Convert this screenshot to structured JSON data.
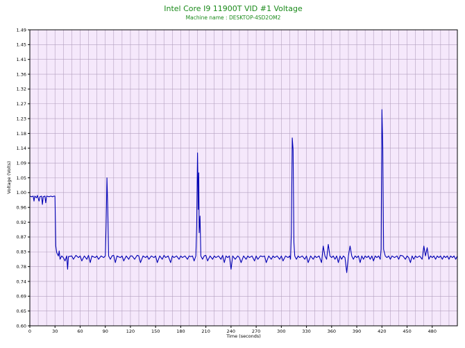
{
  "colors": {
    "plot_background": "#f5e8fb",
    "grid": "#b3a0bf",
    "series_line": "#0000b4",
    "title": "#1a8a1a",
    "axis": "#000000"
  },
  "chart_data": {
    "type": "line",
    "title": "Intel Core I9 11900T VID #1 Voltage",
    "subtitle": "Machine name : DESKTOP-4SD2OM2",
    "xlabel": "Time (seconds)",
    "ylabel": "Voltage (Volts)",
    "xlim": [
      0,
      510
    ],
    "ylim": [
      0.6,
      1.49
    ],
    "grid": true,
    "x_ticks": [
      "0",
      "30",
      "60",
      "90",
      "120",
      "150",
      "180",
      "210",
      "240",
      "270",
      "300",
      "330",
      "360",
      "390",
      "420",
      "450",
      "480"
    ],
    "x_tick_values": [
      0,
      30,
      60,
      90,
      120,
      150,
      180,
      210,
      240,
      270,
      300,
      330,
      360,
      390,
      420,
      450,
      480
    ],
    "x_minor_step": 10,
    "y_ticks": [
      "0.60",
      "0.65",
      "0.69",
      "0.74",
      "0.78",
      "0.83",
      "0.87",
      "0.92",
      "0.96",
      "1.00",
      "1.05",
      "1.09",
      "1.14",
      "1.18",
      "1.23",
      "1.27",
      "1.32",
      "1.36",
      "1.41",
      "1.45",
      "1.49"
    ],
    "series": [
      {
        "values": [
          [
            0,
            0.99
          ],
          [
            2,
            0.988
          ],
          [
            4,
            0.99
          ],
          [
            5,
            0.975
          ],
          [
            6,
            0.99
          ],
          [
            8,
            0.985
          ],
          [
            9,
            0.992
          ],
          [
            11,
            0.975
          ],
          [
            12,
            0.988
          ],
          [
            14,
            0.99
          ],
          [
            15,
            0.965
          ],
          [
            16,
            0.988
          ],
          [
            18,
            0.99
          ],
          [
            19,
            0.97
          ],
          [
            20,
            0.99
          ],
          [
            23,
            0.988
          ],
          [
            25,
            0.99
          ],
          [
            27,
            0.988
          ],
          [
            29,
            0.99
          ],
          [
            30,
            0.99
          ],
          [
            31,
            0.84
          ],
          [
            32,
            0.82
          ],
          [
            34,
            0.81
          ],
          [
            35,
            0.825
          ],
          [
            36,
            0.8
          ],
          [
            38,
            0.81
          ],
          [
            40,
            0.805
          ],
          [
            42,
            0.795
          ],
          [
            44,
            0.81
          ],
          [
            45,
            0.77
          ],
          [
            46,
            0.808
          ],
          [
            50,
            0.81
          ],
          [
            52,
            0.8
          ],
          [
            55,
            0.812
          ],
          [
            58,
            0.805
          ],
          [
            60,
            0.81
          ],
          [
            62,
            0.795
          ],
          [
            65,
            0.81
          ],
          [
            68,
            0.8
          ],
          [
            70,
            0.812
          ],
          [
            72,
            0.79
          ],
          [
            74,
            0.81
          ],
          [
            78,
            0.805
          ],
          [
            80,
            0.81
          ],
          [
            82,
            0.8
          ],
          [
            85,
            0.81
          ],
          [
            88,
            0.805
          ],
          [
            90,
            0.81
          ],
          [
            91,
            0.9
          ],
          [
            92,
            1.045
          ],
          [
            93,
            0.95
          ],
          [
            94,
            0.81
          ],
          [
            96,
            0.8
          ],
          [
            98,
            0.81
          ],
          [
            100,
            0.812
          ],
          [
            102,
            0.79
          ],
          [
            104,
            0.81
          ],
          [
            108,
            0.805
          ],
          [
            110,
            0.81
          ],
          [
            112,
            0.795
          ],
          [
            115,
            0.81
          ],
          [
            118,
            0.8
          ],
          [
            120,
            0.81
          ],
          [
            122,
            0.81
          ],
          [
            125,
            0.8
          ],
          [
            128,
            0.812
          ],
          [
            130,
            0.81
          ],
          [
            132,
            0.79
          ],
          [
            135,
            0.81
          ],
          [
            138,
            0.805
          ],
          [
            140,
            0.81
          ],
          [
            142,
            0.8
          ],
          [
            145,
            0.81
          ],
          [
            148,
            0.805
          ],
          [
            150,
            0.81
          ],
          [
            152,
            0.79
          ],
          [
            155,
            0.81
          ],
          [
            158,
            0.8
          ],
          [
            160,
            0.812
          ],
          [
            162,
            0.805
          ],
          [
            165,
            0.81
          ],
          [
            168,
            0.79
          ],
          [
            170,
            0.81
          ],
          [
            172,
            0.805
          ],
          [
            175,
            0.81
          ],
          [
            178,
            0.8
          ],
          [
            180,
            0.81
          ],
          [
            182,
            0.805
          ],
          [
            185,
            0.81
          ],
          [
            188,
            0.8
          ],
          [
            190,
            0.81
          ],
          [
            192,
            0.808
          ],
          [
            194,
            0.81
          ],
          [
            196,
            0.795
          ],
          [
            198,
            0.81
          ],
          [
            199,
            0.9
          ],
          [
            200,
            1.12
          ],
          [
            201,
            0.95
          ],
          [
            201.5,
            1.06
          ],
          [
            202,
            0.88
          ],
          [
            203,
            0.93
          ],
          [
            204,
            0.81
          ],
          [
            206,
            0.8
          ],
          [
            208,
            0.81
          ],
          [
            210,
            0.812
          ],
          [
            212,
            0.795
          ],
          [
            215,
            0.81
          ],
          [
            218,
            0.8
          ],
          [
            220,
            0.81
          ],
          [
            222,
            0.805
          ],
          [
            225,
            0.81
          ],
          [
            228,
            0.8
          ],
          [
            230,
            0.812
          ],
          [
            232,
            0.79
          ],
          [
            234,
            0.81
          ],
          [
            236,
            0.805
          ],
          [
            238,
            0.81
          ],
          [
            240,
            0.77
          ],
          [
            242,
            0.81
          ],
          [
            245,
            0.8
          ],
          [
            248,
            0.81
          ],
          [
            250,
            0.805
          ],
          [
            252,
            0.79
          ],
          [
            255,
            0.81
          ],
          [
            258,
            0.8
          ],
          [
            260,
            0.81
          ],
          [
            262,
            0.805
          ],
          [
            265,
            0.81
          ],
          [
            268,
            0.795
          ],
          [
            270,
            0.81
          ],
          [
            272,
            0.8
          ],
          [
            275,
            0.81
          ],
          [
            278,
            0.808
          ],
          [
            280,
            0.81
          ],
          [
            282,
            0.79
          ],
          [
            285,
            0.81
          ],
          [
            288,
            0.8
          ],
          [
            290,
            0.81
          ],
          [
            292,
            0.805
          ],
          [
            295,
            0.81
          ],
          [
            298,
            0.8
          ],
          [
            300,
            0.81
          ],
          [
            302,
            0.795
          ],
          [
            305,
            0.81
          ],
          [
            308,
            0.805
          ],
          [
            310,
            0.81
          ],
          [
            311,
            0.8
          ],
          [
            312,
            0.88
          ],
          [
            313,
            1.165
          ],
          [
            314,
            1.13
          ],
          [
            315,
            0.85
          ],
          [
            316,
            0.81
          ],
          [
            318,
            0.8
          ],
          [
            320,
            0.81
          ],
          [
            322,
            0.805
          ],
          [
            325,
            0.81
          ],
          [
            328,
            0.8
          ],
          [
            330,
            0.81
          ],
          [
            332,
            0.79
          ],
          [
            335,
            0.81
          ],
          [
            338,
            0.8
          ],
          [
            340,
            0.81
          ],
          [
            342,
            0.805
          ],
          [
            345,
            0.81
          ],
          [
            348,
            0.79
          ],
          [
            350,
            0.84
          ],
          [
            352,
            0.81
          ],
          [
            354,
            0.8
          ],
          [
            356,
            0.845
          ],
          [
            358,
            0.81
          ],
          [
            360,
            0.805
          ],
          [
            362,
            0.81
          ],
          [
            364,
            0.8
          ],
          [
            366,
            0.81
          ],
          [
            368,
            0.79
          ],
          [
            370,
            0.81
          ],
          [
            372,
            0.8
          ],
          [
            374,
            0.81
          ],
          [
            376,
            0.805
          ],
          [
            378,
            0.76
          ],
          [
            380,
            0.81
          ],
          [
            382,
            0.84
          ],
          [
            384,
            0.81
          ],
          [
            386,
            0.8
          ],
          [
            388,
            0.81
          ],
          [
            390,
            0.805
          ],
          [
            392,
            0.81
          ],
          [
            394,
            0.79
          ],
          [
            396,
            0.81
          ],
          [
            398,
            0.8
          ],
          [
            400,
            0.81
          ],
          [
            402,
            0.805
          ],
          [
            404,
            0.81
          ],
          [
            406,
            0.8
          ],
          [
            408,
            0.81
          ],
          [
            410,
            0.795
          ],
          [
            412,
            0.81
          ],
          [
            414,
            0.805
          ],
          [
            416,
            0.81
          ],
          [
            418,
            0.8
          ],
          [
            419,
            0.83
          ],
          [
            420,
            1.25
          ],
          [
            421,
            1.14
          ],
          [
            422,
            0.83
          ],
          [
            424,
            0.81
          ],
          [
            426,
            0.805
          ],
          [
            428,
            0.81
          ],
          [
            430,
            0.8
          ],
          [
            432,
            0.81
          ],
          [
            435,
            0.805
          ],
          [
            438,
            0.81
          ],
          [
            440,
            0.8
          ],
          [
            442,
            0.812
          ],
          [
            445,
            0.81
          ],
          [
            448,
            0.8
          ],
          [
            450,
            0.81
          ],
          [
            452,
            0.805
          ],
          [
            454,
            0.79
          ],
          [
            456,
            0.81
          ],
          [
            458,
            0.8
          ],
          [
            460,
            0.81
          ],
          [
            462,
            0.805
          ],
          [
            465,
            0.81
          ],
          [
            468,
            0.8
          ],
          [
            470,
            0.84
          ],
          [
            472,
            0.81
          ],
          [
            474,
            0.835
          ],
          [
            476,
            0.8
          ],
          [
            478,
            0.81
          ],
          [
            480,
            0.805
          ],
          [
            482,
            0.81
          ],
          [
            484,
            0.8
          ],
          [
            486,
            0.81
          ],
          [
            488,
            0.805
          ],
          [
            490,
            0.81
          ],
          [
            492,
            0.8
          ],
          [
            494,
            0.81
          ],
          [
            496,
            0.805
          ],
          [
            498,
            0.81
          ],
          [
            500,
            0.8
          ],
          [
            502,
            0.81
          ],
          [
            504,
            0.805
          ],
          [
            506,
            0.81
          ],
          [
            508,
            0.8
          ],
          [
            510,
            0.81
          ]
        ]
      }
    ]
  }
}
